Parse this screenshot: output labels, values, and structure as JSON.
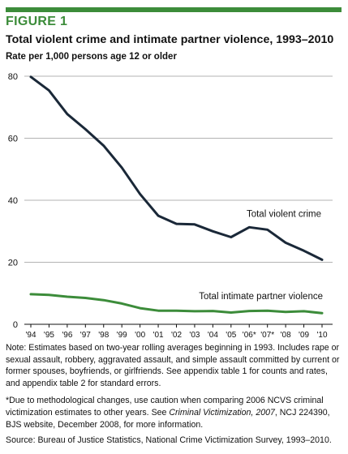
{
  "figure_label": "FIGURE 1",
  "chart_data": {
    "type": "line",
    "title": "Total violent crime and intimate partner violence, 1993–2010",
    "subtitle": "Rate per 1,000 persons age 12 or older",
    "categories": [
      "'94",
      "'95",
      "'96",
      "'97",
      "'98",
      "'99",
      "'00",
      "'01",
      "'02",
      "'03",
      "'04",
      "'05",
      "'06*",
      "'07*",
      "'08",
      "'09",
      "'10"
    ],
    "ylim": [
      0,
      80
    ],
    "yticks": [
      0,
      20,
      40,
      60,
      80
    ],
    "grid": true,
    "series": [
      {
        "name": "Total violent crime",
        "color": "#1a2838",
        "values": [
          79.8,
          75.4,
          67.8,
          62.9,
          57.6,
          50.5,
          42.0,
          35.0,
          32.4,
          32.2,
          30.0,
          28.1,
          31.3,
          30.5,
          26.3,
          23.7,
          20.8
        ]
      },
      {
        "name": "Total intimate partner violence",
        "color": "#3c8c3a",
        "values": [
          9.7,
          9.5,
          8.9,
          8.5,
          7.8,
          6.7,
          5.2,
          4.4,
          4.4,
          4.2,
          4.3,
          3.8,
          4.3,
          4.4,
          4.0,
          4.2,
          3.6
        ]
      }
    ]
  },
  "notes": {
    "note": "Note: Estimates based on two-year rolling averages beginning in 1993. Includes rape or sexual assault, robbery, aggravated assault, and simple assault committed by current or former spouses, boyfriends, or girlfriends. See appendix table 1 for counts and rates, and appendix table 2 for standard errors.",
    "caution_pre": "*Due to methodological changes, use caution when comparing 2006 NCVS criminal victimization estimates to other years. See ",
    "caution_italic": "Criminal Victimization, 2007",
    "caution_post": ", NCJ 224390, BJS website, December 2008, for more information.",
    "source": "Source: Bureau of Justice Statistics, National Crime Victimization Survey, 1993–2010."
  }
}
